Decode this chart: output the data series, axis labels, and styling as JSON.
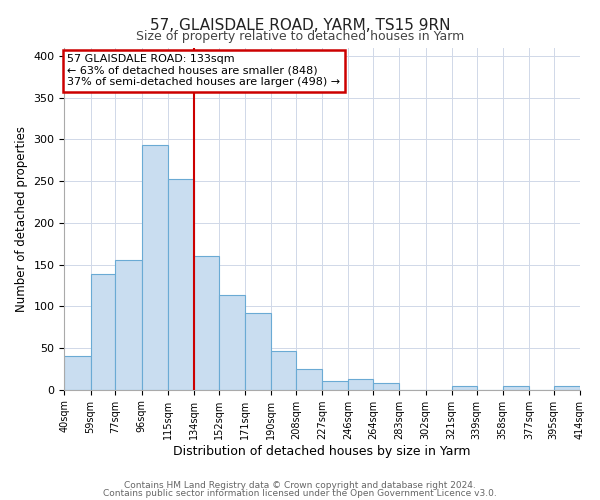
{
  "title": "57, GLAISDALE ROAD, YARM, TS15 9RN",
  "subtitle": "Size of property relative to detached houses in Yarm",
  "xlabel": "Distribution of detached houses by size in Yarm",
  "ylabel": "Number of detached properties",
  "footer_line1": "Contains HM Land Registry data © Crown copyright and database right 2024.",
  "footer_line2": "Contains public sector information licensed under the Open Government Licence v3.0.",
  "bin_labels": [
    "40sqm",
    "59sqm",
    "77sqm",
    "96sqm",
    "115sqm",
    "134sqm",
    "152sqm",
    "171sqm",
    "190sqm",
    "208sqm",
    "227sqm",
    "246sqm",
    "264sqm",
    "283sqm",
    "302sqm",
    "321sqm",
    "339sqm",
    "358sqm",
    "377sqm",
    "395sqm",
    "414sqm"
  ],
  "bar_values": [
    40,
    139,
    155,
    293,
    253,
    160,
    113,
    92,
    46,
    25,
    10,
    13,
    8,
    0,
    0,
    5,
    0,
    5,
    0,
    5
  ],
  "bin_edges": [
    40,
    59,
    77,
    96,
    115,
    134,
    152,
    171,
    190,
    208,
    227,
    246,
    264,
    283,
    302,
    321,
    339,
    358,
    377,
    395,
    414
  ],
  "bar_color": "#c9ddf0",
  "bar_edge_color": "#6aaad4",
  "property_line_x": 134,
  "property_line_color": "#cc0000",
  "annotation_title": "57 GLAISDALE ROAD: 133sqm",
  "annotation_line1": "← 63% of detached houses are smaller (848)",
  "annotation_line2": "37% of semi-detached houses are larger (498) →",
  "annotation_box_color": "#cc0000",
  "ylim": [
    0,
    410
  ],
  "yticks": [
    0,
    50,
    100,
    150,
    200,
    250,
    300,
    350,
    400
  ],
  "background_color": "#ffffff",
  "plot_background_color": "#ffffff",
  "grid_color": "#d0d8e8"
}
